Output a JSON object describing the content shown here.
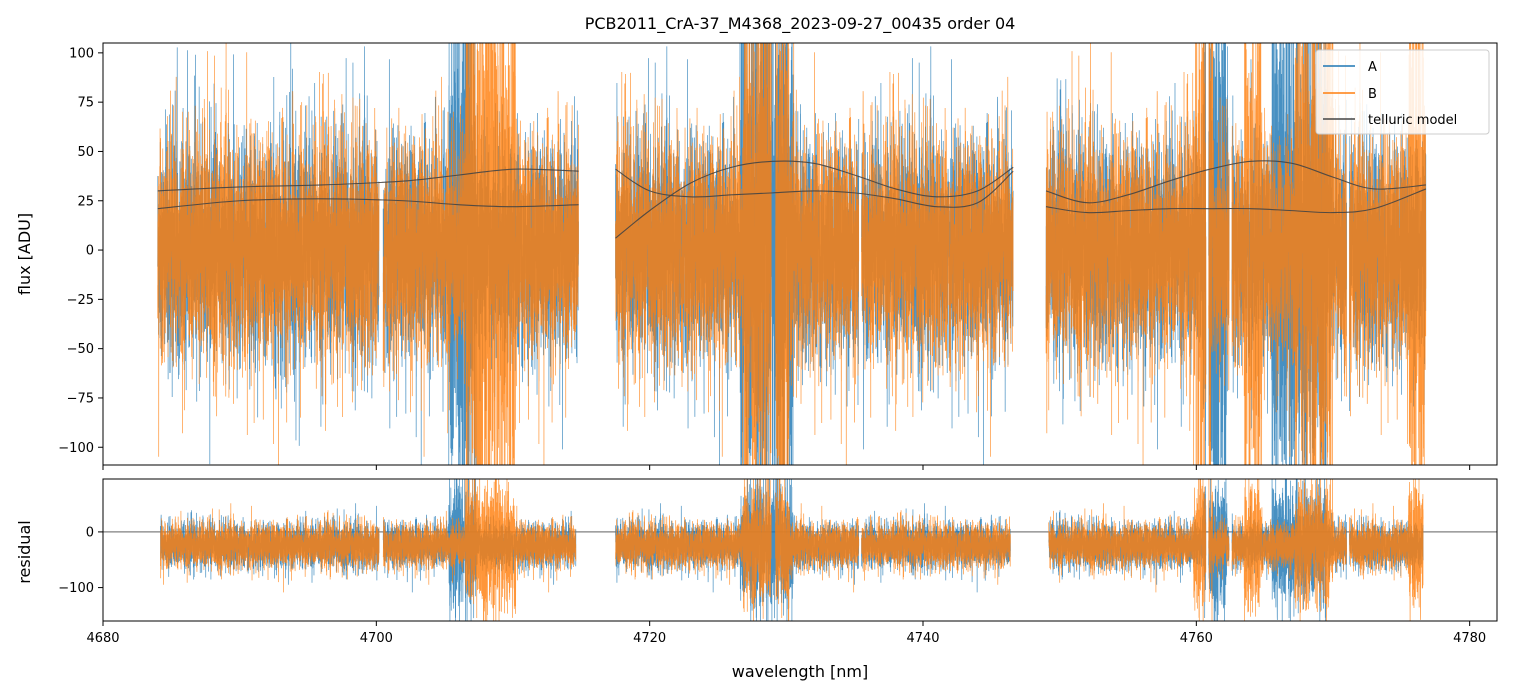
{
  "chart_data": [
    {
      "type": "line",
      "panel": "main",
      "title": "PCB2011_CrA-37_M4368_2023-09-27_00435  order 04",
      "xlabel": "",
      "ylabel": "flux [ADU]",
      "xlim": [
        4680,
        4782
      ],
      "ylim": [
        -109,
        105
      ],
      "yticks": [
        -100,
        -75,
        -50,
        -25,
        0,
        25,
        50,
        75,
        100
      ],
      "ytick_labels": [
        "−100",
        "−75",
        "−50",
        "−25",
        "0",
        "25",
        "50",
        "75",
        "100"
      ],
      "xticks": [
        4680,
        4700,
        4720,
        4740,
        4760,
        4780
      ],
      "legend": {
        "placement": "upper-right",
        "entries": [
          "A",
          "B",
          "telluric model"
        ]
      },
      "segments": [
        [
          4684.0,
          4714.8
        ],
        [
          4717.5,
          4746.6
        ],
        [
          4749.0,
          4776.8
        ]
      ],
      "series": [
        {
          "name": "A",
          "color": "#1f77b4",
          "description": "noisy spectrum, mostly within -75..75 with deep spikes to about -110 near 4706, 4728-4730, 4761-4769"
        },
        {
          "name": "B",
          "color": "#ff7f0e",
          "description": "noisy spectrum, mostly within -75..75 with spikes to +105 near 4707-4710, 4727-4730, 4760-4770"
        },
        {
          "name": "telluric model",
          "color": "#444444",
          "curves": [
            {
              "x": [
                4684.0,
                4690,
                4696,
                4702,
                4706,
                4710,
                4714.8
              ],
              "y": [
                30,
                32,
                33,
                35,
                38,
                41,
                40
              ]
            },
            {
              "x": [
                4684.0,
                4690,
                4696,
                4702,
                4706,
                4710,
                4714.8
              ],
              "y": [
                21,
                25,
                26,
                25,
                23,
                22,
                23
              ]
            },
            {
              "x": [
                4717.5,
                4720,
                4723,
                4726,
                4729,
                4732,
                4735,
                4738,
                4741,
                4744,
                4746.6
              ],
              "y": [
                6,
                20,
                34,
                42,
                45,
                44,
                38,
                31,
                27,
                30,
                42
              ]
            },
            {
              "x": [
                4717.5,
                4720,
                4723,
                4726,
                4729,
                4732,
                4735,
                4738,
                4741,
                4744,
                4746.6
              ],
              "y": [
                41,
                30,
                27,
                28,
                29,
                30,
                29,
                26,
                22,
                24,
                40
              ]
            },
            {
              "x": [
                4749.0,
                4752,
                4755,
                4758,
                4761,
                4764,
                4767,
                4770,
                4773,
                4776.8
              ],
              "y": [
                30,
                24,
                28,
                35,
                41,
                45,
                44,
                37,
                31,
                33
              ]
            },
            {
              "x": [
                4749.0,
                4752,
                4755,
                4758,
                4761,
                4764,
                4767,
                4770,
                4773,
                4776.8
              ],
              "y": [
                22,
                19,
                20,
                21,
                21,
                21,
                20,
                19,
                21,
                31
              ]
            }
          ]
        }
      ]
    },
    {
      "type": "line",
      "panel": "residual",
      "xlabel": "wavelength [nm]",
      "ylabel": "residual",
      "xlim": [
        4680,
        4782
      ],
      "ylim": [
        -160,
        95
      ],
      "yticks": [
        -100,
        0
      ],
      "ytick_labels": [
        "−100",
        "0"
      ],
      "xticks": [
        4680,
        4700,
        4720,
        4740,
        4760,
        4780
      ],
      "xtick_labels": [
        "4680",
        "4700",
        "4720",
        "4740",
        "4760",
        "4780"
      ],
      "zero_line": 0,
      "segments": [
        [
          4684.2,
          4714.6
        ],
        [
          4717.5,
          4746.4
        ],
        [
          4749.2,
          4776.6
        ]
      ],
      "series": [
        {
          "name": "A",
          "color": "#1f77b4"
        },
        {
          "name": "B",
          "color": "#ff7f0e"
        }
      ]
    }
  ]
}
